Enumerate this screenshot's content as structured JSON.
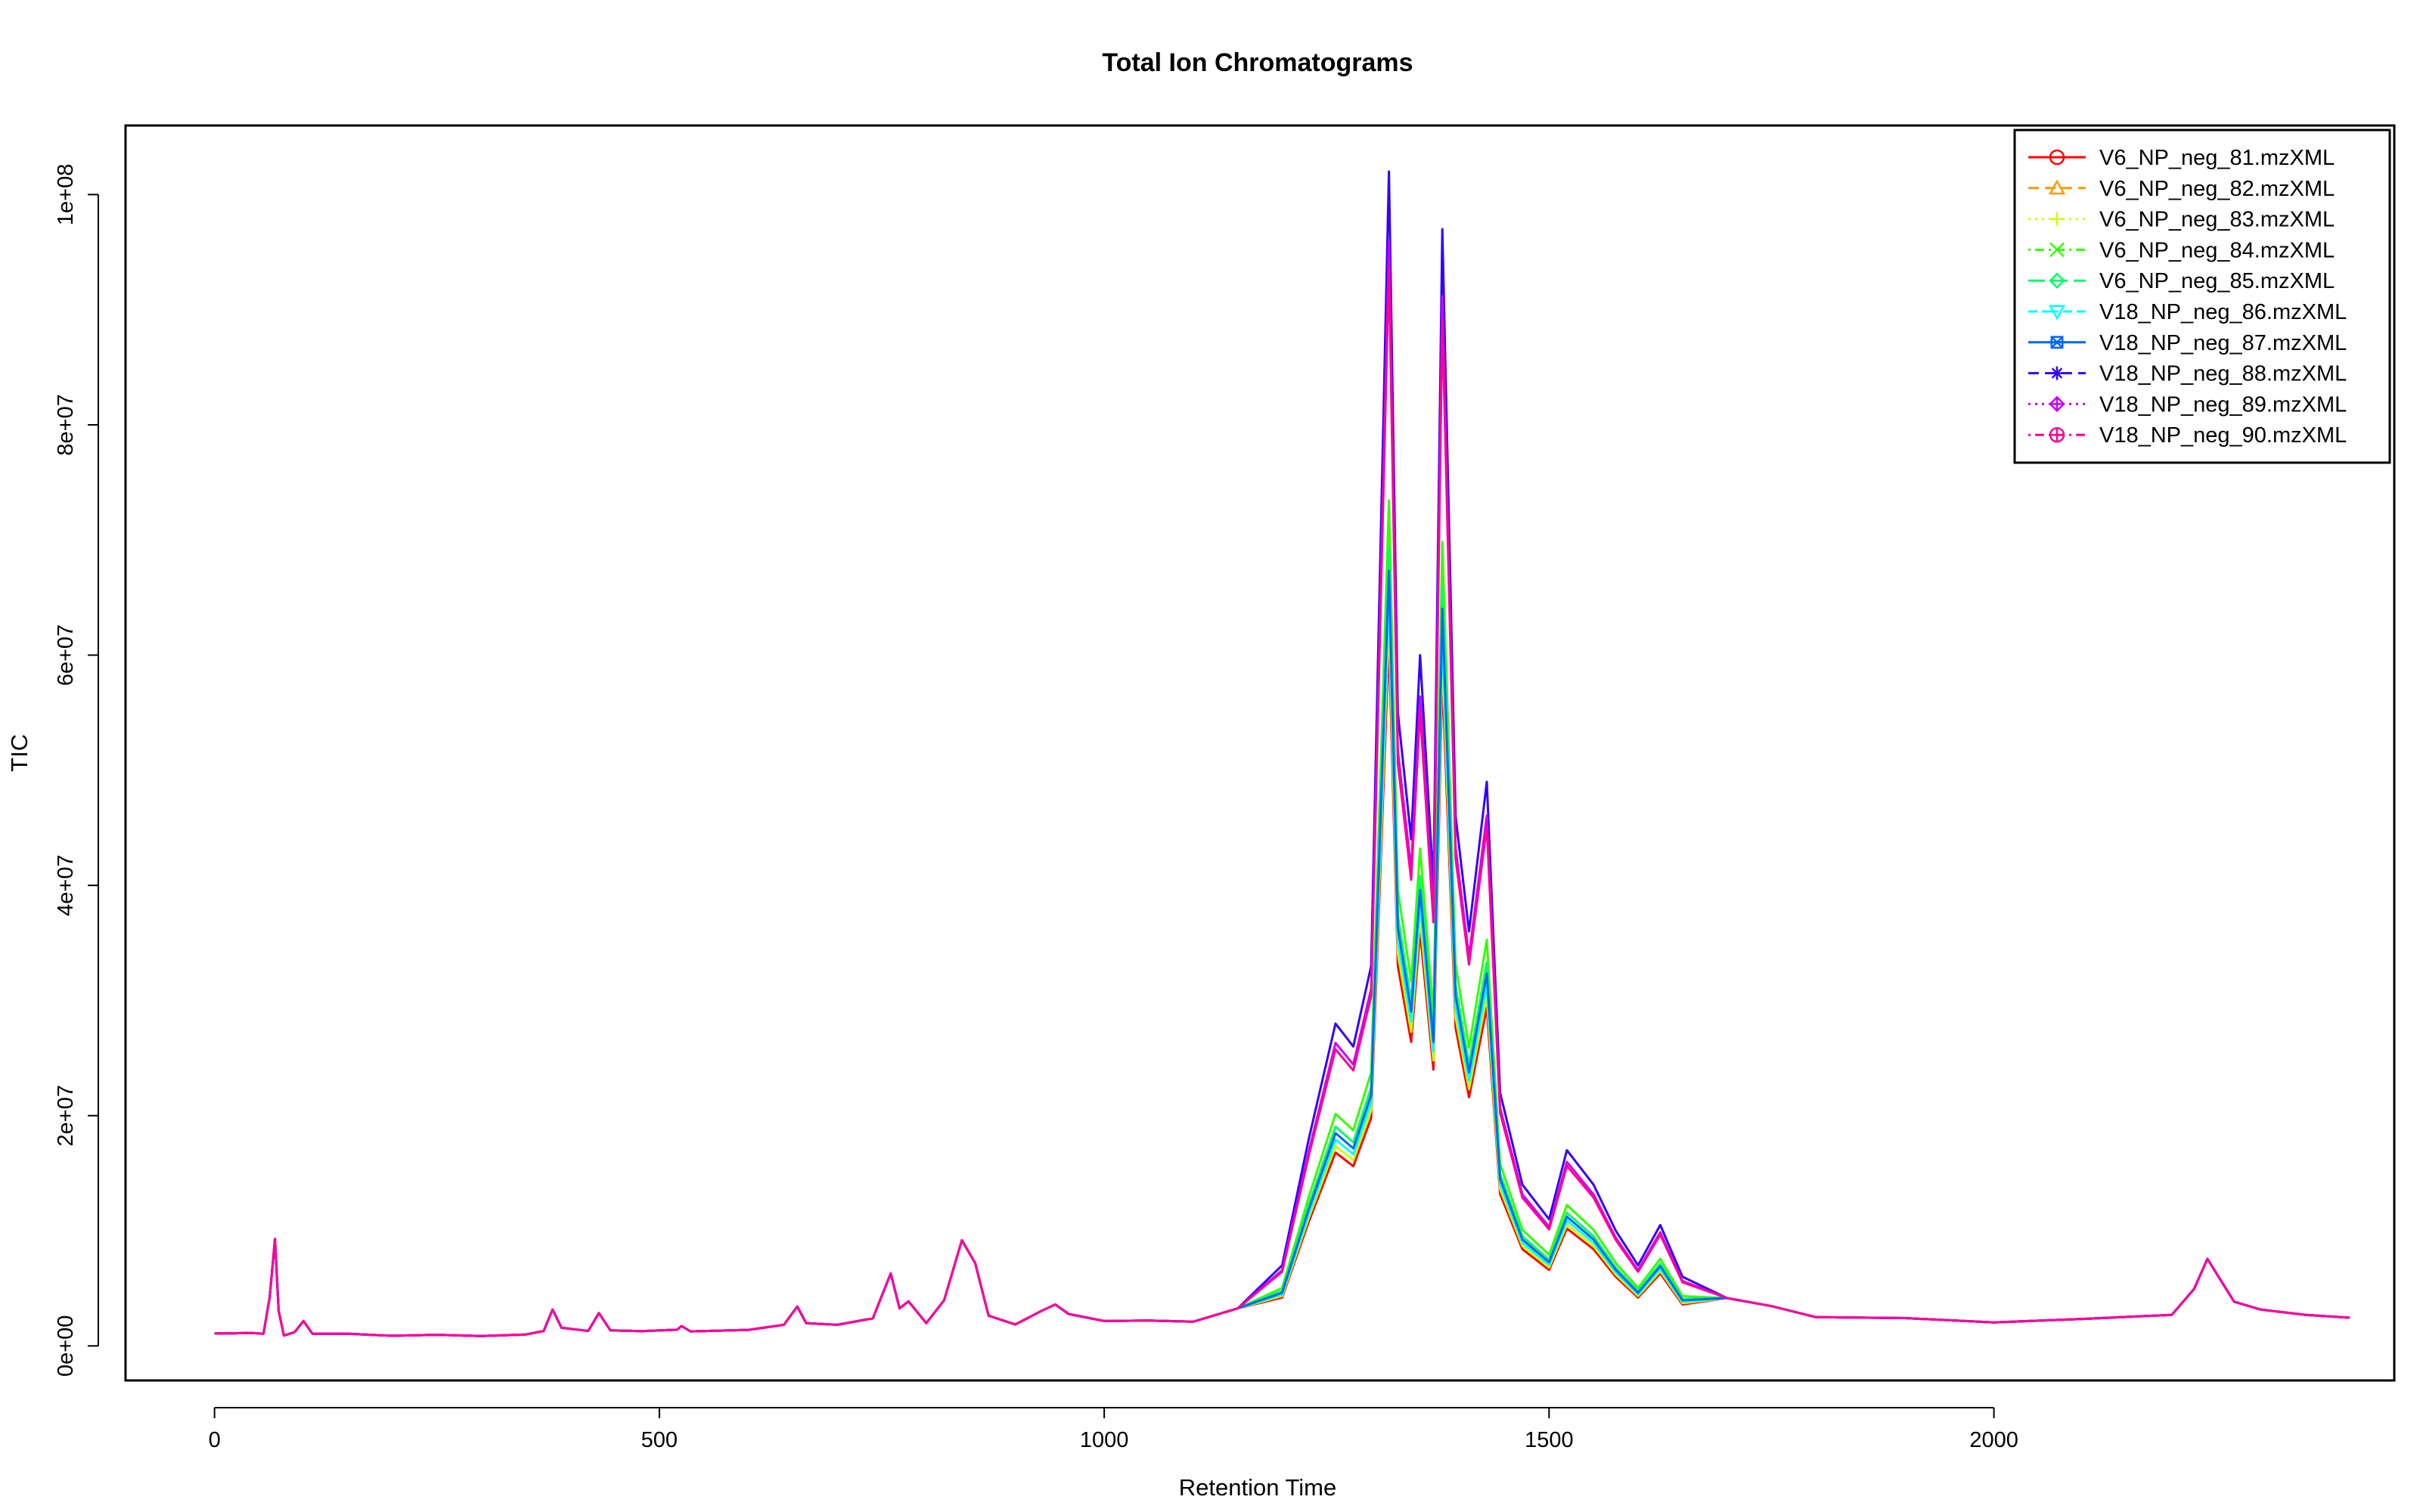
{
  "chart_data": {
    "type": "line",
    "title": "Total Ion Chromatograms",
    "xlabel": "Retention Time",
    "ylabel": "TIC",
    "xlim": [
      -100,
      2450
    ],
    "ylim": [
      -3000000,
      106000000
    ],
    "xticks": [
      0,
      500,
      1000,
      1500,
      2000
    ],
    "xtick_labels": [
      "0",
      "500",
      "1000",
      "1500",
      "2000"
    ],
    "yticks": [
      0,
      20000000,
      40000000,
      60000000,
      80000000,
      100000000
    ],
    "ytick_labels": [
      "0e+00",
      "2e+07",
      "4e+07",
      "6e+07",
      "8e+07",
      "1e+08"
    ],
    "legend_position": "top-right",
    "x": [
      0,
      20,
      40,
      55,
      62,
      68,
      72,
      78,
      90,
      100,
      110,
      150,
      200,
      250,
      300,
      350,
      370,
      380,
      390,
      420,
      432,
      445,
      480,
      520,
      525,
      535,
      600,
      640,
      655,
      665,
      700,
      740,
      760,
      770,
      780,
      800,
      820,
      840,
      855,
      870,
      900,
      930,
      945,
      960,
      1000,
      1050,
      1100,
      1150,
      1200,
      1230,
      1260,
      1280,
      1300,
      1320,
      1330,
      1345,
      1355,
      1370,
      1380,
      1395,
      1410,
      1430,
      1445,
      1470,
      1500,
      1520,
      1550,
      1575,
      1600,
      1625,
      1650,
      1700,
      1750,
      1800,
      1900,
      2000,
      2100,
      2200,
      2225,
      2240,
      2270,
      2300,
      2350,
      2400
    ],
    "series": [
      {
        "name": "V6_NP_neg_81.mzXML",
        "color": "#FF0000",
        "style": "solid",
        "marker": "circle",
        "peak": 0.6
      },
      {
        "name": "V6_NP_neg_82.mzXML",
        "color": "#FF9900",
        "style": "dashed",
        "marker": "triangle",
        "peak": 0.68
      },
      {
        "name": "V6_NP_neg_83.mzXML",
        "color": "#CCFF00",
        "style": "dotted",
        "marker": "plus",
        "peak": 0.62
      },
      {
        "name": "V6_NP_neg_84.mzXML",
        "color": "#33FF00",
        "style": "dotdash",
        "marker": "cross",
        "peak": 0.72
      },
      {
        "name": "V6_NP_neg_85.mzXML",
        "color": "#00FF66",
        "style": "longdash",
        "marker": "diamond",
        "peak": 0.68
      },
      {
        "name": "V18_NP_neg_86.mzXML",
        "color": "#00FFFF",
        "style": "twodash",
        "marker": "triangle-down",
        "peak": 0.64
      },
      {
        "name": "V18_NP_neg_87.mzXML",
        "color": "#0066FF",
        "style": "solid",
        "marker": "square-cross",
        "peak": 0.66
      },
      {
        "name": "V18_NP_neg_88.mzXML",
        "color": "#3300FF",
        "style": "dashed",
        "marker": "asterisk",
        "peak": 1.0
      },
      {
        "name": "V18_NP_neg_89.mzXML",
        "color": "#CC00FF",
        "style": "dotted",
        "marker": "diamond-plus",
        "peak": 0.94
      },
      {
        "name": "V18_NP_neg_90.mzXML",
        "color": "#FF0099",
        "style": "dotdash",
        "marker": "circle-plus",
        "peak": 0.92
      }
    ],
    "base_profile": [
      1200000,
      1100000,
      1050000,
      1100000,
      4000000,
      10000000,
      3000000,
      1000000,
      1200000,
      2000000,
      1100000,
      1000000,
      950000,
      950000,
      950000,
      1000000,
      1200000,
      3300000,
      1500000,
      1400000,
      2800000,
      1500000,
      1300000,
      1300000,
      1800000,
      1200000,
      1500000,
      1800000,
      3800000,
      2000000,
      1700000,
      2500000,
      6000000,
      3500000,
      3800000,
      2200000,
      4000000,
      8500000,
      7500000,
      2500000,
      2000000,
      3000000,
      4000000,
      2800000,
      2000000,
      2300000,
      2000000,
      3500000,
      7000000,
      18000000,
      28000000,
      26000000,
      33000000,
      102000000,
      55000000,
      44000000,
      60000000,
      40000000,
      97000000,
      46000000,
      36000000,
      49000000,
      22000000,
      14000000,
      11000000,
      17000000,
      14000000,
      10000000,
      7000000,
      10500000,
      6000000,
      4200000,
      3200000,
      2600000,
      2300000,
      2200000,
      2300000,
      3000000,
      5000000,
      7000000,
      4000000,
      3000000,
      2900000,
      2400000
    ]
  }
}
